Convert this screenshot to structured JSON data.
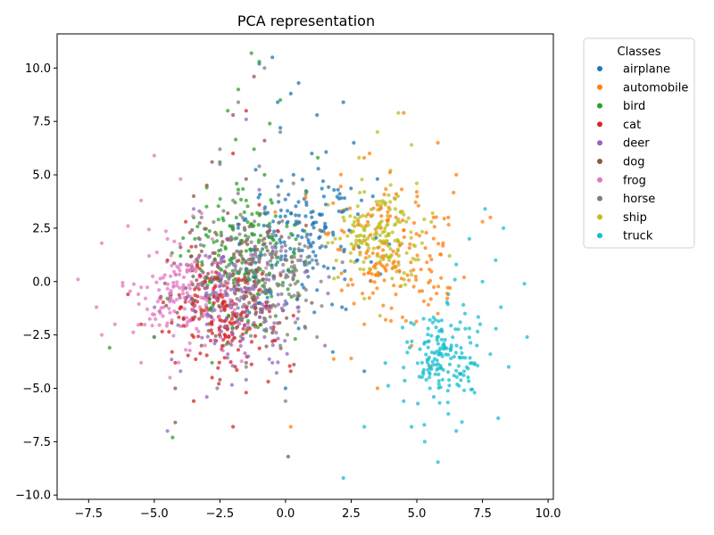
{
  "chart_data": {
    "type": "scatter",
    "title": "PCA representation",
    "xlabel": "",
    "ylabel": "",
    "xlim": [
      -8.7,
      10.2
    ],
    "ylim": [
      -10.2,
      11.6
    ],
    "x_ticks": [
      -7.5,
      -5.0,
      -2.5,
      0.0,
      2.5,
      5.0,
      7.5,
      10.0
    ],
    "x_tick_labels": [
      "−7.5",
      "−5.0",
      "−2.5",
      "0.0",
      "2.5",
      "5.0",
      "7.5",
      "10.0"
    ],
    "y_ticks": [
      -10.0,
      -7.5,
      -5.0,
      -2.5,
      0.0,
      2.5,
      5.0,
      7.5,
      10.0
    ],
    "y_tick_labels": [
      "−10.0",
      "−7.5",
      "−5.0",
      "−2.5",
      "0.0",
      "2.5",
      "5.0",
      "7.5",
      "10.0"
    ],
    "grid": false,
    "legend": {
      "title": "Classes",
      "placement": "outside-right-top"
    },
    "series": [
      {
        "name": "airplane",
        "color": "#1f77b4",
        "center": [
          0.8,
          2.0
        ],
        "spread": [
          2.2,
          3.0
        ],
        "points": [
          [
            -0.5,
            10.5
          ],
          [
            0.5,
            9.3
          ],
          [
            -1.0,
            10.2
          ],
          [
            0.2,
            8.8
          ],
          [
            1.2,
            7.8
          ],
          [
            -0.2,
            7.2
          ],
          [
            2.2,
            8.4
          ],
          [
            1.0,
            6.0
          ],
          [
            0.3,
            5.0
          ],
          [
            2.0,
            4.3
          ],
          [
            -0.8,
            3.2
          ],
          [
            1.5,
            2.5
          ],
          [
            0.0,
            1.2
          ],
          [
            2.8,
            1.6
          ],
          [
            -1.5,
            0.6
          ],
          [
            1.2,
            -0.4
          ],
          [
            2.3,
            -1.3
          ],
          [
            0.5,
            -2.2
          ],
          [
            1.8,
            -3.3
          ],
          [
            3.0,
            -4.2
          ],
          [
            0.0,
            -5.0
          ],
          [
            -1.0,
            -1.0
          ],
          [
            3.5,
            4.8
          ],
          [
            2.6,
            6.5
          ],
          [
            -0.3,
            8.4
          ]
        ]
      },
      {
        "name": "automobile",
        "color": "#ff7f0e",
        "center": [
          4.0,
          1.0
        ],
        "spread": [
          2.0,
          2.8
        ],
        "points": [
          [
            4.5,
            7.9
          ],
          [
            5.8,
            6.5
          ],
          [
            3.2,
            6.0
          ],
          [
            6.5,
            5.0
          ],
          [
            5.0,
            4.2
          ],
          [
            3.5,
            3.6
          ],
          [
            6.2,
            3.0
          ],
          [
            4.5,
            2.4
          ],
          [
            7.5,
            2.8
          ],
          [
            5.5,
            1.2
          ],
          [
            3.8,
            0.6
          ],
          [
            6.8,
            0.2
          ],
          [
            4.2,
            -0.6
          ],
          [
            5.8,
            -1.5
          ],
          [
            3.0,
            -2.0
          ],
          [
            4.8,
            -3.0
          ],
          [
            2.5,
            -3.6
          ],
          [
            5.5,
            -4.0
          ],
          [
            7.8,
            3.0
          ],
          [
            2.0,
            1.5
          ],
          [
            0.2,
            -6.8
          ],
          [
            3.5,
            -5.0
          ],
          [
            6.0,
            1.8
          ]
        ]
      },
      {
        "name": "bird",
        "color": "#2ca02c",
        "center": [
          -1.5,
          1.2
        ],
        "spread": [
          2.0,
          3.0
        ],
        "points": [
          [
            -1.3,
            10.7
          ],
          [
            -1.0,
            10.3
          ],
          [
            -1.8,
            9.0
          ],
          [
            -2.2,
            8.0
          ],
          [
            -0.6,
            7.4
          ],
          [
            -1.2,
            6.2
          ],
          [
            -2.5,
            5.6
          ],
          [
            -0.8,
            5.0
          ],
          [
            -3.0,
            4.4
          ],
          [
            -1.5,
            3.8
          ],
          [
            -3.5,
            3.0
          ],
          [
            -2.0,
            2.5
          ],
          [
            -0.5,
            2.0
          ],
          [
            -4.0,
            1.2
          ],
          [
            -2.5,
            0.6
          ],
          [
            -1.0,
            0.0
          ],
          [
            -4.5,
            -0.8
          ],
          [
            -3.2,
            -1.6
          ],
          [
            -1.5,
            -2.4
          ],
          [
            -5.0,
            -2.6
          ],
          [
            -6.7,
            -3.1
          ],
          [
            -4.3,
            -7.3
          ],
          [
            -2.8,
            -3.8
          ],
          [
            0.8,
            4.2
          ],
          [
            -0.2,
            8.5
          ]
        ]
      },
      {
        "name": "cat",
        "color": "#d62728",
        "center": [
          -2.5,
          -1.5
        ],
        "spread": [
          1.8,
          2.4
        ],
        "points": [
          [
            -1.5,
            8.0
          ],
          [
            -2.0,
            6.0
          ],
          [
            -3.0,
            4.5
          ],
          [
            -1.0,
            3.6
          ],
          [
            -3.8,
            2.8
          ],
          [
            -2.2,
            2.0
          ],
          [
            -4.5,
            1.0
          ],
          [
            -3.0,
            0.2
          ],
          [
            -1.5,
            -0.5
          ],
          [
            -4.0,
            -1.2
          ],
          [
            -2.5,
            -1.8
          ],
          [
            -3.5,
            -2.6
          ],
          [
            -1.8,
            -3.2
          ],
          [
            -4.2,
            -3.8
          ],
          [
            -2.8,
            -4.5
          ],
          [
            -1.5,
            -5.2
          ],
          [
            -3.5,
            -5.6
          ],
          [
            -2.0,
            -6.8
          ],
          [
            -5.5,
            -2.0
          ],
          [
            -0.5,
            -2.8
          ],
          [
            0.2,
            -4.2
          ],
          [
            -6.0,
            -0.6
          ]
        ]
      },
      {
        "name": "deer",
        "color": "#9467bd",
        "center": [
          -1.8,
          -1.0
        ],
        "spread": [
          2.0,
          2.4
        ],
        "points": [
          [
            -1.5,
            7.6
          ],
          [
            -2.5,
            5.5
          ],
          [
            -1.0,
            4.3
          ],
          [
            -3.5,
            3.4
          ],
          [
            -2.0,
            2.6
          ],
          [
            -0.5,
            1.6
          ],
          [
            -4.0,
            0.8
          ],
          [
            -2.8,
            0.0
          ],
          [
            -1.2,
            -0.8
          ],
          [
            -4.8,
            -1.4
          ],
          [
            -3.0,
            -2.0
          ],
          [
            -0.8,
            -2.6
          ],
          [
            -2.2,
            -3.4
          ],
          [
            -4.0,
            -4.2
          ],
          [
            -1.5,
            -4.6
          ],
          [
            -0.5,
            -3.8
          ],
          [
            -3.0,
            -5.4
          ],
          [
            -4.5,
            -7.0
          ],
          [
            1.5,
            -3.0
          ],
          [
            0.5,
            -1.2
          ]
        ]
      },
      {
        "name": "dog",
        "color": "#8c564b",
        "center": [
          -1.8,
          0.2
        ],
        "spread": [
          1.9,
          2.6
        ],
        "points": [
          [
            -1.2,
            9.6
          ],
          [
            -2.0,
            7.8
          ],
          [
            -0.8,
            6.6
          ],
          [
            -2.8,
            5.6
          ],
          [
            -1.5,
            4.8
          ],
          [
            -3.5,
            4.0
          ],
          [
            -2.2,
            3.2
          ],
          [
            -0.6,
            2.4
          ],
          [
            -4.0,
            1.6
          ],
          [
            -2.8,
            0.8
          ],
          [
            -1.2,
            0.0
          ],
          [
            -3.8,
            -0.8
          ],
          [
            -2.0,
            -1.6
          ],
          [
            -0.5,
            -2.4
          ],
          [
            -3.2,
            -3.0
          ],
          [
            -1.5,
            -3.8
          ],
          [
            -2.5,
            -4.6
          ],
          [
            -4.2,
            -5.0
          ],
          [
            0.1,
            -8.2
          ],
          [
            -4.2,
            -6.6
          ],
          [
            1.0,
            -1.0
          ]
        ]
      },
      {
        "name": "frog",
        "color": "#e377c2",
        "center": [
          -3.8,
          -0.5
        ],
        "spread": [
          1.8,
          2.3
        ],
        "points": [
          [
            -5.0,
            5.9
          ],
          [
            -4.0,
            4.8
          ],
          [
            -5.5,
            3.8
          ],
          [
            -3.2,
            3.2
          ],
          [
            -6.0,
            2.6
          ],
          [
            -4.5,
            2.0
          ],
          [
            -7.0,
            1.8
          ],
          [
            -5.2,
            1.2
          ],
          [
            -3.5,
            0.6
          ],
          [
            -7.9,
            0.1
          ],
          [
            -6.2,
            -0.2
          ],
          [
            -4.8,
            -0.8
          ],
          [
            -7.2,
            -1.2
          ],
          [
            -3.0,
            -1.4
          ],
          [
            -6.5,
            -2.0
          ],
          [
            -5.0,
            -2.6
          ],
          [
            -3.8,
            -3.2
          ],
          [
            -7.0,
            -2.5
          ],
          [
            -4.4,
            -4.5
          ],
          [
            -2.0,
            -2.0
          ],
          [
            -5.5,
            -3.8
          ]
        ]
      },
      {
        "name": "horse",
        "color": "#7f7f7f",
        "center": [
          -0.8,
          0.8
        ],
        "spread": [
          1.9,
          2.8
        ],
        "points": [
          [
            -0.8,
            10.0
          ],
          [
            -1.8,
            8.4
          ],
          [
            -0.2,
            7.0
          ],
          [
            -2.5,
            6.2
          ],
          [
            -1.0,
            5.4
          ],
          [
            0.3,
            4.6
          ],
          [
            -2.0,
            3.8
          ],
          [
            -3.2,
            3.0
          ],
          [
            -0.5,
            2.2
          ],
          [
            -1.8,
            1.4
          ],
          [
            0.8,
            0.8
          ],
          [
            -2.8,
            0.2
          ],
          [
            -1.0,
            -0.6
          ],
          [
            0.5,
            -1.4
          ],
          [
            -2.2,
            -2.2
          ],
          [
            -0.2,
            -3.0
          ],
          [
            1.2,
            -2.6
          ],
          [
            -1.5,
            -4.0
          ],
          [
            0.0,
            -5.6
          ],
          [
            -2.6,
            -5.0
          ]
        ]
      },
      {
        "name": "ship",
        "color": "#bcbd22",
        "center": [
          3.5,
          2.2
        ],
        "spread": [
          1.5,
          2.0
        ],
        "points": [
          [
            4.3,
            7.9
          ],
          [
            3.5,
            7.0
          ],
          [
            4.8,
            6.4
          ],
          [
            2.8,
            5.8
          ],
          [
            4.0,
            5.2
          ],
          [
            5.0,
            4.6
          ],
          [
            3.0,
            4.2
          ],
          [
            3.8,
            3.6
          ],
          [
            2.2,
            3.0
          ],
          [
            4.6,
            2.8
          ],
          [
            3.4,
            2.2
          ],
          [
            2.6,
            1.6
          ],
          [
            4.0,
            1.2
          ],
          [
            5.2,
            1.8
          ],
          [
            3.2,
            0.6
          ],
          [
            2.0,
            0.2
          ],
          [
            4.4,
            -0.2
          ],
          [
            3.0,
            -0.8
          ],
          [
            1.6,
            2.2
          ],
          [
            5.6,
            3.2
          ],
          [
            3.6,
            -1.6
          ]
        ]
      },
      {
        "name": "truck",
        "color": "#17becf",
        "center": [
          6.0,
          -3.5
        ],
        "spread": [
          1.3,
          2.2
        ],
        "points": [
          [
            7.6,
            3.4
          ],
          [
            8.3,
            2.5
          ],
          [
            7.0,
            2.0
          ],
          [
            8.0,
            1.0
          ],
          [
            6.5,
            0.8
          ],
          [
            7.5,
            0.0
          ],
          [
            9.1,
            -0.1
          ],
          [
            6.2,
            -0.6
          ],
          [
            8.2,
            -1.2
          ],
          [
            5.5,
            -1.8
          ],
          [
            7.0,
            -2.2
          ],
          [
            9.2,
            -2.6
          ],
          [
            6.0,
            -3.0
          ],
          [
            7.8,
            -3.4
          ],
          [
            5.2,
            -3.8
          ],
          [
            6.8,
            -4.2
          ],
          [
            8.5,
            -4.0
          ],
          [
            5.5,
            -5.0
          ],
          [
            7.2,
            -5.2
          ],
          [
            4.5,
            -5.6
          ],
          [
            6.2,
            -6.2
          ],
          [
            8.1,
            -6.4
          ],
          [
            3.0,
            -6.8
          ],
          [
            5.3,
            -7.5
          ],
          [
            2.2,
            -9.2
          ],
          [
            4.8,
            -6.8
          ],
          [
            6.5,
            -7.0
          ]
        ]
      }
    ]
  }
}
